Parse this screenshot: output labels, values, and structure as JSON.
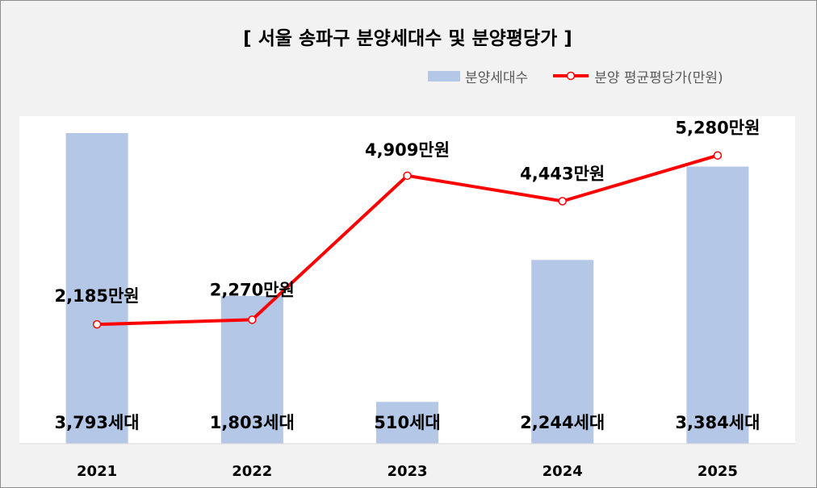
{
  "chart_data": {
    "type": "bar",
    "title": "[ 서울 송파구 분양세대수 및 분양평당가 ]",
    "categories": [
      "2021",
      "2022",
      "2023",
      "2024",
      "2025"
    ],
    "series": [
      {
        "name": "분양세대수",
        "type": "bar",
        "values": [
          3793,
          1803,
          510,
          2244,
          3384
        ],
        "labels": [
          "3,793세대",
          "1,803세대",
          "510세대",
          "2,244세대",
          "3,384세대"
        ],
        "color": "#b4c7e7",
        "axis": "primary",
        "ylim": [
          0,
          4000
        ]
      },
      {
        "name": "분양 평균평당가(만원)",
        "type": "line",
        "values": [
          2185,
          2270,
          4909,
          4443,
          5280
        ],
        "labels": [
          "2,185만원",
          "2,270만원",
          "4,909만원",
          "4,443만원",
          "5,280만원"
        ],
        "color": "#ff0000",
        "axis": "secondary",
        "ylim": [
          0,
          6000
        ]
      }
    ],
    "legend": "top-right",
    "grid": false
  }
}
